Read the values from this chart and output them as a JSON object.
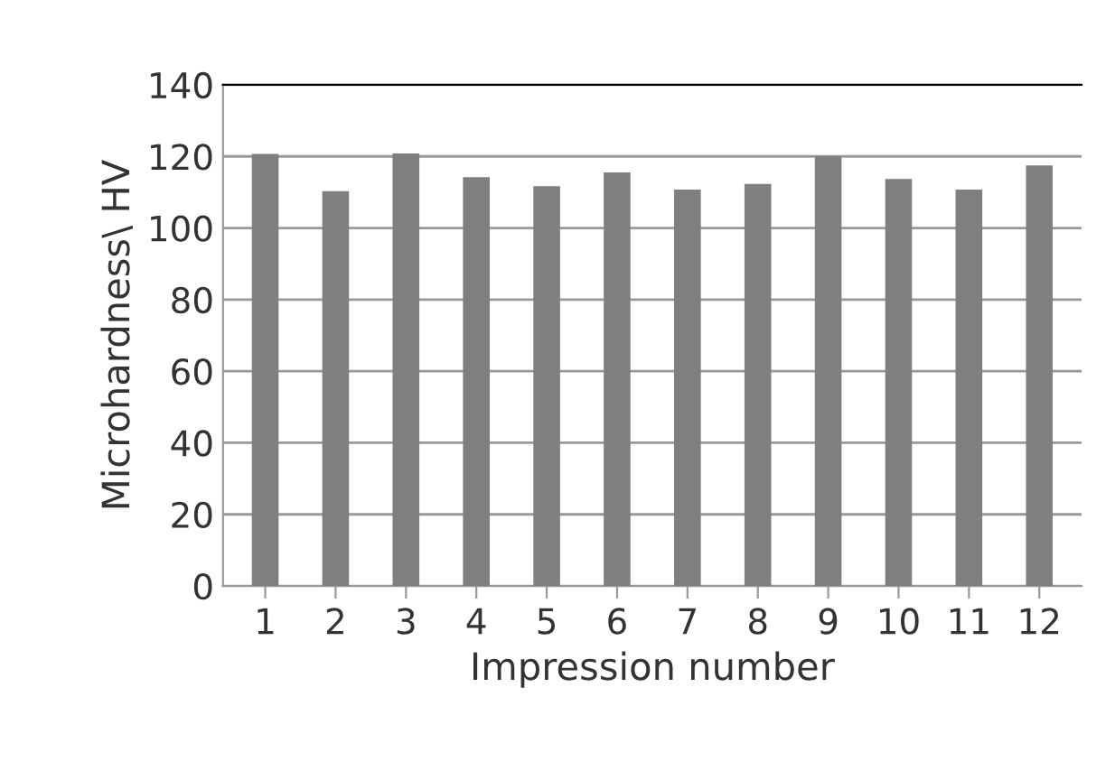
{
  "chart_data": {
    "type": "bar",
    "xlabel": "Impression number",
    "ylabel": "Microhardness\\ HV",
    "categories": [
      "1",
      "2",
      "3",
      "4",
      "5",
      "6",
      "7",
      "8",
      "9",
      "10",
      "11",
      "12"
    ],
    "values": [
      120.7,
      110.3,
      120.8,
      114.2,
      111.7,
      115.5,
      110.7,
      112.3,
      120,
      113.7,
      110.7,
      117.5
    ],
    "color": "#7f7f82",
    "ylim": [
      0,
      140
    ],
    "yticks": [
      0,
      20,
      40,
      60,
      80,
      100,
      120,
      140
    ],
    "grid": "y"
  }
}
